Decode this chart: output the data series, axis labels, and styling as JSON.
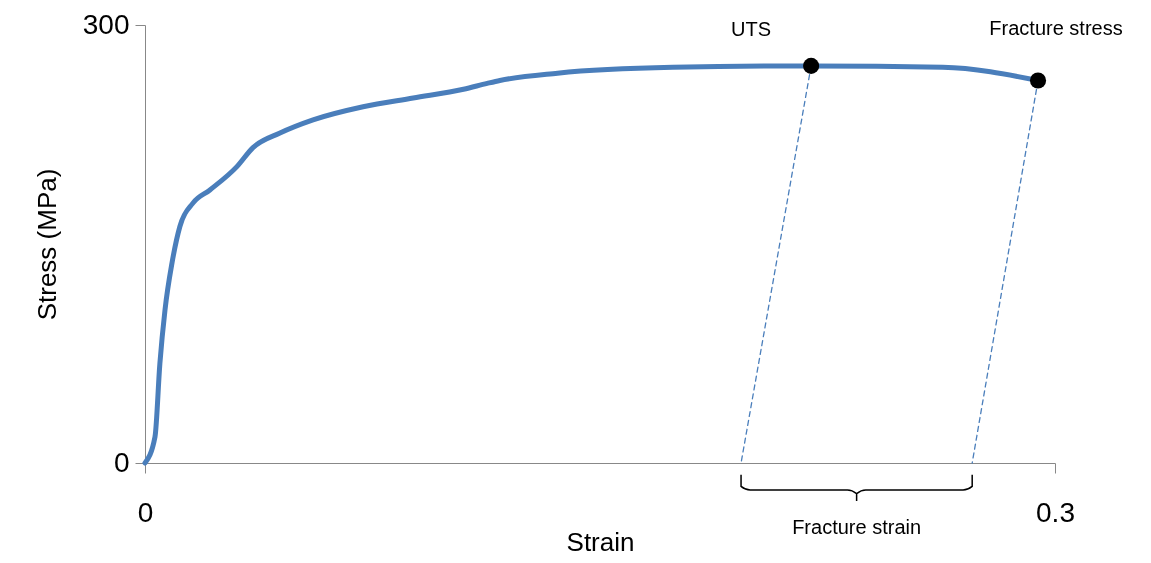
{
  "chart_data": {
    "type": "line",
    "xlabel": "Strain",
    "ylabel": "Stress (MPa)",
    "xlim": [
      0,
      0.3
    ],
    "ylim": [
      0,
      300
    ],
    "xticks": [
      0,
      0.3
    ],
    "yticks": [
      0,
      300
    ],
    "grid": false,
    "series": [
      {
        "color": "#4a7ebb",
        "x": [
          0,
          0.0033,
          0.0049,
          0.0066,
          0.0089,
          0.0115,
          0.0158,
          0.0214,
          0.0303,
          0.0356,
          0.0445,
          0.0554,
          0.0719,
          0.0884,
          0.105,
          0.1128,
          0.117,
          0.136,
          0.174,
          0.2196,
          0.263,
          0.2944
        ],
        "values": [
          0,
          18,
          68,
          105,
          137,
          162,
          178,
          187,
          203,
          216,
          226,
          235,
          244,
          250,
          256,
          260,
          262,
          267,
          271,
          272,
          271,
          262
        ]
      },
      {
        "type": "line",
        "line_style": "dashed",
        "color": "#4a7ebb",
        "x": [
          0.2196,
          0.1965
        ],
        "values": [
          272,
          0
        ]
      },
      {
        "type": "line",
        "line_style": "dashed",
        "color": "#4a7ebb",
        "x": [
          0.2944,
          0.2727
        ],
        "values": [
          262,
          0
        ]
      },
      {
        "type": "scatter",
        "color": "#000000",
        "x": [
          0.2196,
          0.2944
        ],
        "values": [
          272,
          262
        ]
      }
    ],
    "annotations": [
      {
        "text": "UTS",
        "x": 0.2196,
        "y": 272
      },
      {
        "text": "Fracture stress",
        "x": 0.2944,
        "y": 262
      },
      "Fracture strain"
    ]
  }
}
